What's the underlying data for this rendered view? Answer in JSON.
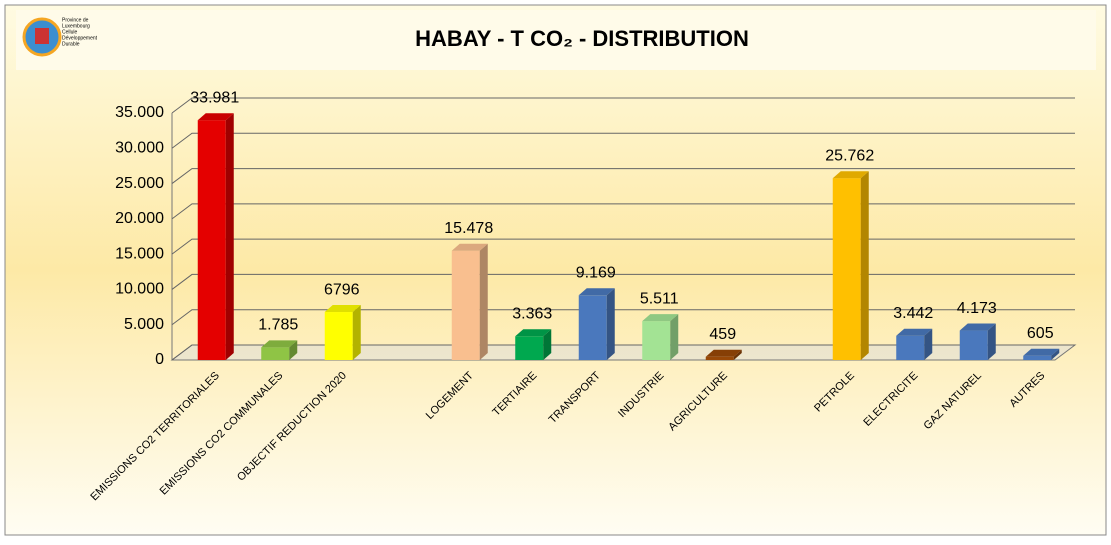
{
  "chart_data": {
    "type": "bar3d",
    "title": "HABAY - T CO₂ - DISTRIBUTION",
    "logo_text": [
      "Province de",
      "Luxembourg",
      "Cellule",
      "Développement",
      "Durable"
    ],
    "categories": [
      "EMISSIONS CO2 TERRITORIALES",
      "EMISSIONS CO2 COMMUNALES",
      "OBJECTIF REDUCTION 2020",
      null,
      "LOGEMENT",
      "TERTIAIRE",
      "TRANSPORT",
      "INDUSTRIE",
      "AGRICULTURE",
      null,
      "PETROLE",
      "ELECTRICITE",
      "GAZ NATUREL",
      "AUTRES"
    ],
    "values": [
      33981,
      1785,
      6796,
      null,
      15478,
      3363,
      9169,
      5511,
      459,
      null,
      25762,
      3442,
      4173,
      605
    ],
    "value_labels": [
      "33.981",
      "1.785",
      "6796",
      null,
      "15.478",
      "3.363",
      "9.169",
      "5.511",
      "459",
      null,
      "25.762",
      "3.442",
      "4.173",
      "605"
    ],
    "colors": [
      "#e40000",
      "#8fc445",
      "#ffff00",
      null,
      "#f9bf8f",
      "#00a84f",
      "#4a78bd",
      "#a3e394",
      "#984807",
      null,
      "#ffc000",
      "#4a78bd",
      "#4a78bd",
      "#4a78bd"
    ],
    "ylim": [
      0,
      35000
    ],
    "yticks": [
      0,
      {
        "value": 5000,
        "label": "5.000"
      },
      {
        "value": 10000,
        "label": "10.000"
      },
      {
        "value": 15000,
        "label": "15.000"
      },
      {
        "value": 20000,
        "label": "20.000"
      },
      {
        "value": 25000,
        "label": "25.000"
      },
      {
        "value": 30000,
        "label": "30.000"
      },
      {
        "value": 35000,
        "label": "35.000"
      }
    ],
    "grid": true
  }
}
